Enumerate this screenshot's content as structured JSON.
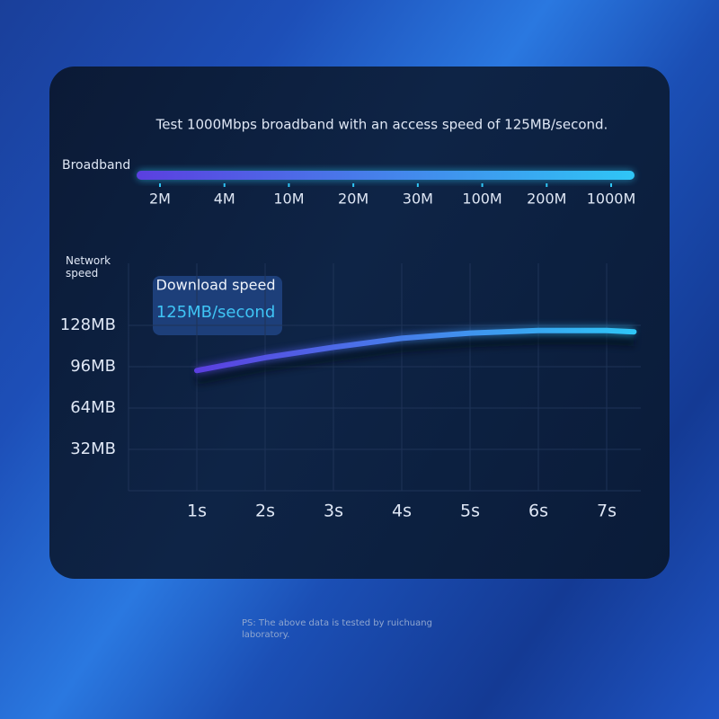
{
  "header": {
    "title": "Test 1000Mbps broadband with an access speed of 125MB/second."
  },
  "broadband": {
    "label": "Broadband",
    "ticks": [
      "2M",
      "4M",
      "10M",
      "20M",
      "30M",
      "100M",
      "200M",
      "1000M"
    ]
  },
  "chart_data": {
    "type": "line",
    "y_label": "Network speed",
    "annotation": {
      "title": "Download speed",
      "value": "125MB/second"
    },
    "x": [
      1,
      2,
      3,
      4,
      5,
      6,
      7,
      7.4
    ],
    "values": [
      93,
      103,
      111,
      118,
      122,
      124,
      124,
      123
    ],
    "colors": [
      "#5b3fe0",
      "#2fc6f6"
    ],
    "xlim": [
      0,
      7.5
    ],
    "xticks": [
      {
        "value": 1,
        "label": "1s"
      },
      {
        "value": 2,
        "label": "2s"
      },
      {
        "value": 3,
        "label": "3s"
      },
      {
        "value": 4,
        "label": "4s"
      },
      {
        "value": 5,
        "label": "5s"
      },
      {
        "value": 6,
        "label": "6s"
      },
      {
        "value": 7,
        "label": "7s"
      }
    ],
    "ylim": [
      0,
      176
    ],
    "yticks": [
      {
        "value": 32,
        "label": "32MB"
      },
      {
        "value": 64,
        "label": "64MB"
      },
      {
        "value": 96,
        "label": "96MB"
      },
      {
        "value": 128,
        "label": "128MB"
      }
    ],
    "grid": true
  },
  "footer": {
    "note": "PS: The above data is tested by ruichuang laboratory."
  }
}
